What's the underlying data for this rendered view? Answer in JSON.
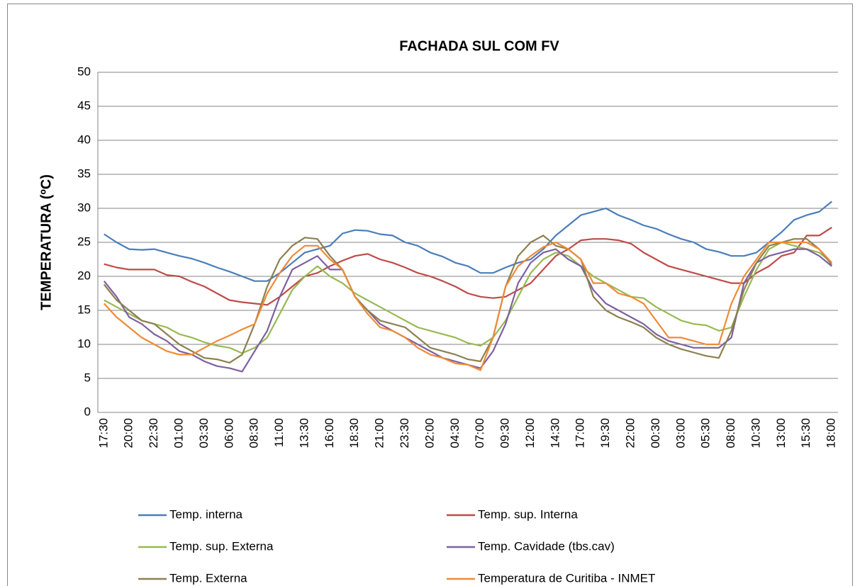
{
  "chart_data": {
    "type": "line",
    "title": "FACHADA SUL COM FV",
    "y_label": "TEMPERATURA (ºC)",
    "categories": [
      "17:30",
      null,
      "20:00",
      null,
      "22:30",
      null,
      "01:00",
      null,
      "03:30",
      null,
      "06:00",
      null,
      "08:30",
      null,
      "11:00",
      null,
      "13:30",
      null,
      "16:00",
      null,
      "18:30",
      null,
      "21:00",
      null,
      "23:30",
      null,
      "02:00",
      null,
      "04:30",
      null,
      "07:00",
      null,
      "09:30",
      null,
      "12:00",
      null,
      "14:30",
      null,
      "17:00",
      null,
      "19:30",
      null,
      "22:00",
      null,
      "00:30",
      null,
      "03:00",
      null,
      "05:30",
      null,
      "08:00",
      null,
      "10:30",
      null,
      "13:00",
      null,
      "15:30",
      null,
      "18:00"
    ],
    "ylim": [
      0,
      50
    ],
    "yticks": [
      0,
      5,
      10,
      15,
      20,
      25,
      30,
      35,
      40,
      45,
      50
    ],
    "grid": true,
    "legend": "bottom",
    "series": [
      {
        "name": "Temp. interna",
        "color": "#4a7ebb",
        "values": [
          26.2,
          25,
          24.0,
          23.9,
          24.0,
          23.5,
          23.0,
          22.6,
          22.0,
          21.3,
          20.7,
          20.0,
          19.3,
          19.3,
          20.5,
          22.0,
          23.5,
          24.0,
          24.5,
          26.3,
          26.8,
          26.7,
          26.2,
          26.0,
          25.0,
          24.5,
          23.5,
          22.9,
          22.0,
          21.5,
          20.5,
          20.5,
          21.3,
          22.0,
          22.5,
          24.0,
          26.0,
          27.5,
          29.0,
          29.5,
          30.0,
          29.0,
          28.3,
          27.5,
          27.0,
          26.2,
          25.5,
          25.0,
          24.0,
          23.6,
          23.0,
          23.0,
          23.5,
          25.0,
          26.5,
          28.3,
          29.0,
          29.5,
          31.0
        ]
      },
      {
        "name": "Temp. sup. Interna",
        "color": "#be4b48",
        "values": [
          21.8,
          21.3,
          21.0,
          21.0,
          21.0,
          20.2,
          20.0,
          19.2,
          18.5,
          17.5,
          16.5,
          16.2,
          16.0,
          15.8,
          17.0,
          18.5,
          20.0,
          20.5,
          21.5,
          22.3,
          23.0,
          23.3,
          22.5,
          22.0,
          21.3,
          20.5,
          20.0,
          19.3,
          18.5,
          17.5,
          17.0,
          16.8,
          17.0,
          18.0,
          19.0,
          21.0,
          23.0,
          24.0,
          25.3,
          25.5,
          25.5,
          25.3,
          24.8,
          23.5,
          22.5,
          21.5,
          21.0,
          20.5,
          20.0,
          19.5,
          19.0,
          19.0,
          20.5,
          21.5,
          23.0,
          23.5,
          26.0,
          26.0,
          27.2
        ]
      },
      {
        "name": "Temp. sup. Externa",
        "color": "#98b954",
        "values": [
          16.5,
          15.5,
          14.5,
          13.5,
          13.0,
          12.5,
          11.5,
          11.0,
          10.3,
          9.8,
          9.5,
          8.7,
          9.5,
          11.0,
          14.5,
          18.0,
          20.0,
          21.5,
          20.0,
          19.0,
          17.5,
          16.5,
          15.5,
          14.5,
          13.5,
          12.5,
          12.0,
          11.5,
          11.0,
          10.2,
          9.8,
          11.0,
          13.5,
          17.0,
          20.5,
          22.5,
          23.5,
          23.0,
          21.5,
          20.0,
          19.0,
          18.0,
          17.0,
          16.8,
          15.5,
          14.5,
          13.5,
          13.0,
          12.8,
          12.0,
          12.5,
          17.0,
          21.0,
          24.0,
          25.0,
          24.5,
          24.0,
          23.5,
          22.0
        ]
      },
      {
        "name": "Temp. Cavidade (tbs.cav)",
        "color": "#7d60a0",
        "values": [
          19.3,
          17,
          14,
          13,
          11.5,
          10.5,
          9,
          8.5,
          7.5,
          6.8,
          6.5,
          6,
          9,
          12,
          17,
          21,
          22,
          23,
          21,
          21,
          17,
          15,
          13,
          12,
          11,
          10,
          9,
          8,
          7.5,
          7,
          6.5,
          9,
          13,
          19,
          22,
          23.5,
          24,
          22.5,
          21.5,
          18,
          16,
          15,
          14,
          13,
          11.5,
          10.5,
          10,
          9.5,
          9.5,
          9.5,
          11,
          19,
          22,
          23,
          23.5,
          24,
          24,
          23,
          21.5
        ]
      },
      {
        "name": "Temp. Externa",
        "color": "#8c8050",
        "values": [
          18.8,
          16.5,
          15,
          13.5,
          13,
          11.5,
          10,
          9,
          8,
          7.8,
          7.3,
          8.5,
          13,
          18.5,
          22.5,
          24.5,
          25.7,
          25.5,
          23,
          21,
          17,
          15,
          13.5,
          13,
          12.5,
          11,
          9.5,
          9,
          8.5,
          7.8,
          7.5,
          11,
          18.5,
          23,
          25,
          26,
          24.5,
          24,
          22.5,
          17,
          15,
          14,
          13.3,
          12.5,
          11,
          10,
          9.3,
          8.8,
          8.3,
          8,
          12,
          18,
          22,
          24.5,
          25,
          25.5,
          25.5,
          24,
          21.7
        ]
      },
      {
        "name": "Temperatura de Curitiba - INMET",
        "color": "#f08a35",
        "values": [
          16,
          14,
          12.5,
          11,
          10,
          9,
          8.5,
          8.5,
          9.5,
          10.5,
          11.3,
          12.2,
          13,
          17.5,
          20.5,
          23,
          24.5,
          24.5,
          22.5,
          21,
          17,
          14.5,
          12.5,
          12,
          11,
          9.5,
          8.5,
          8,
          7.2,
          7,
          6.2,
          11,
          18.5,
          21.5,
          23,
          24.3,
          25,
          24,
          22.5,
          19,
          19,
          17.5,
          17,
          16,
          13.5,
          11,
          11,
          10.5,
          10,
          10,
          16,
          20,
          22.5,
          25,
          25,
          25,
          25,
          24,
          22
        ]
      }
    ]
  }
}
